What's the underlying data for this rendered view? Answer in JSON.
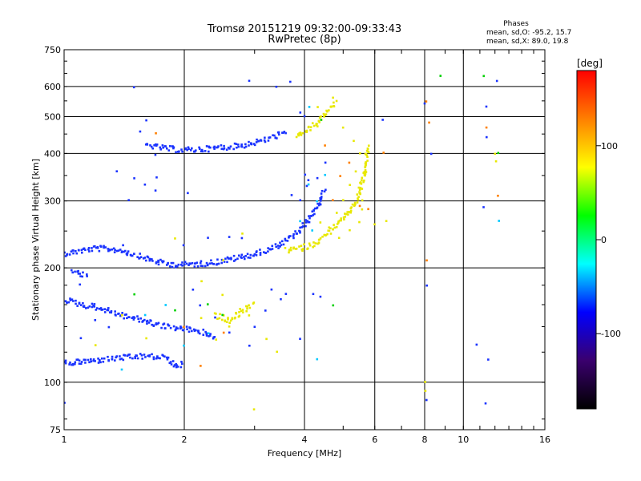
{
  "chart_data": {
    "type": "scatter",
    "title": "Tromsø 20151219 09:32:00-09:33:43",
    "subtitle": "RwPretec (8p)",
    "xlabel": "Frequency [MHz]",
    "ylabel": "Stationary phase Virtual Height [km]",
    "x_scale": "log2",
    "y_scale": "log",
    "xlim": [
      1,
      16
    ],
    "ylim": [
      75,
      750
    ],
    "x_ticks": [
      1,
      2,
      4,
      6,
      8,
      10,
      16
    ],
    "y_ticks": [
      75,
      100,
      200,
      300,
      400,
      500,
      600,
      750
    ],
    "grid": true,
    "info": {
      "heading": "Phases",
      "line_o": "mean, sd,O: -95.2, 15.7",
      "line_x": "mean, sd,X:  89.0, 19.8"
    },
    "colorbar": {
      "label": "[deg]",
      "range": [
        -180,
        180
      ],
      "ticks": [
        "100",
        "0",
        "-100"
      ],
      "tick_values": [
        100,
        0,
        -100
      ],
      "colors": [
        "#000000",
        "#3a006e",
        "#0000ff",
        "#00ffff",
        "#00ff00",
        "#ffff00",
        "#ff7f00",
        "#ff0000"
      ]
    },
    "series": [
      {
        "mode": "O",
        "color": "#1a33ff",
        "phase": -95,
        "traces": [
          [
            [
              1.0,
              218
            ],
            [
              1.1,
              222
            ],
            [
              1.2,
              225
            ],
            [
              1.3,
              224
            ],
            [
              1.4,
              222
            ],
            [
              1.5,
              217
            ],
            [
              1.6,
              212
            ],
            [
              1.7,
              208
            ],
            [
              1.8,
              205
            ],
            [
              1.9,
              204
            ],
            [
              2.0,
              204
            ],
            [
              2.2,
              205
            ],
            [
              2.4,
              207
            ],
            [
              2.7,
              212
            ],
            [
              3.0,
              217
            ],
            [
              3.3,
              224
            ],
            [
              3.6,
              235
            ],
            [
              3.9,
              250
            ],
            [
              4.1,
              268
            ],
            [
              4.3,
              290
            ],
            [
              4.5,
              320
            ]
          ],
          [
            [
              1.6,
              422
            ],
            [
              1.7,
              416
            ],
            [
              1.8,
              412
            ],
            [
              2.0,
              408
            ],
            [
              2.2,
              410
            ],
            [
              2.5,
              415
            ],
            [
              2.8,
              420
            ],
            [
              3.2,
              435
            ],
            [
              3.6,
              455
            ]
          ],
          [
            [
              1.0,
              112
            ],
            [
              1.2,
              114
            ],
            [
              1.4,
              116
            ],
            [
              1.6,
              117
            ],
            [
              1.8,
              116
            ],
            [
              1.9,
              110
            ],
            [
              2.0,
              112
            ]
          ],
          [
            [
              1.05,
              195
            ],
            [
              1.1,
              193
            ],
            [
              1.15,
              190
            ]
          ],
          [
            [
              1.0,
              165
            ],
            [
              1.1,
              160
            ],
            [
              1.2,
              158
            ],
            [
              1.4,
              150
            ],
            [
              1.6,
              145
            ],
            [
              1.8,
              140
            ],
            [
              2.0,
              138
            ],
            [
              2.2,
              136
            ],
            [
              2.4,
              130
            ]
          ]
        ],
        "points": [
          [
            1.5,
            600
          ],
          [
            1.6,
            490
          ],
          [
            1.55,
            455
          ],
          [
            1.7,
            395
          ],
          [
            1.6,
            330
          ],
          [
            1.5,
            345
          ],
          [
            1.7,
            320
          ],
          [
            2.05,
            315
          ],
          [
            1.35,
            360
          ],
          [
            1.45,
            300
          ],
          [
            2.6,
            135
          ],
          [
            2.9,
            125
          ],
          [
            3.3,
            175
          ],
          [
            3.6,
            170
          ],
          [
            3.0,
            140
          ],
          [
            3.2,
            155
          ],
          [
            3.5,
            165
          ],
          [
            3.9,
            130
          ],
          [
            4.2,
            170
          ],
          [
            4.4,
            168
          ],
          [
            3.4,
            600
          ],
          [
            3.7,
            620
          ],
          [
            2.9,
            620
          ],
          [
            3.9,
            510
          ],
          [
            4.0,
            500
          ],
          [
            4.0,
            350
          ],
          [
            4.05,
            330
          ],
          [
            4.1,
            340
          ],
          [
            3.9,
            300
          ],
          [
            3.7,
            310
          ],
          [
            4.3,
            345
          ],
          [
            4.5,
            380
          ],
          [
            6.3,
            490
          ],
          [
            8.1,
            180
          ],
          [
            8.1,
            90
          ],
          [
            8.3,
            400
          ],
          [
            8.0,
            540
          ],
          [
            10.8,
            125
          ],
          [
            11.2,
            290
          ],
          [
            11.4,
            530
          ],
          [
            11.4,
            440
          ],
          [
            11.4,
            88
          ],
          [
            11.5,
            115
          ],
          [
            12.1,
            620
          ],
          [
            1.0,
            88
          ],
          [
            1.1,
            180
          ],
          [
            2.0,
            230
          ],
          [
            2.3,
            240
          ],
          [
            2.6,
            240
          ],
          [
            2.8,
            240
          ],
          [
            1.7,
            345
          ],
          [
            1.4,
            230
          ],
          [
            1.3,
            140
          ],
          [
            1.2,
            145
          ],
          [
            1.1,
            130
          ],
          [
            2.1,
            175
          ],
          [
            2.2,
            160
          ],
          [
            2.4,
            148
          ]
        ]
      },
      {
        "mode": "X",
        "color": "#e8e800",
        "phase": 90,
        "traces": [
          [
            [
              3.6,
              222
            ],
            [
              3.9,
              225
            ],
            [
              4.2,
              230
            ],
            [
              4.5,
              242
            ],
            [
              4.8,
              258
            ],
            [
              5.1,
              276
            ],
            [
              5.4,
              300
            ],
            [
              5.6,
              340
            ],
            [
              5.8,
              420
            ]
          ],
          [
            [
              3.8,
              440
            ],
            [
              4.0,
              455
            ],
            [
              4.2,
              470
            ],
            [
              4.4,
              490
            ],
            [
              4.6,
              520
            ],
            [
              4.8,
              545
            ]
          ],
          [
            [
              2.4,
              150
            ],
            [
              2.6,
              145
            ],
            [
              2.8,
              155
            ],
            [
              3.0,
              160
            ]
          ]
        ],
        "points": [
          [
            4.7,
            560
          ],
          [
            5.0,
            470
          ],
          [
            5.3,
            430
          ],
          [
            5.5,
            400
          ],
          [
            5.7,
            380
          ],
          [
            5.6,
            300
          ],
          [
            5.5,
            265
          ],
          [
            5.2,
            250
          ],
          [
            4.9,
            240
          ],
          [
            4.6,
            255
          ],
          [
            4.4,
            262
          ],
          [
            4.8,
            280
          ],
          [
            5.0,
            300
          ],
          [
            5.2,
            330
          ],
          [
            5.4,
            360
          ],
          [
            5.6,
            285
          ],
          [
            6.0,
            260
          ],
          [
            2.6,
            140
          ],
          [
            2.2,
            148
          ],
          [
            2.4,
            130
          ],
          [
            2.5,
            170
          ],
          [
            2.9,
            150
          ],
          [
            3.2,
            130
          ],
          [
            3.4,
            120
          ],
          [
            2.2,
            185
          ],
          [
            1.6,
            130
          ],
          [
            1.4,
            150
          ],
          [
            1.2,
            125
          ],
          [
            12.0,
            400
          ],
          [
            12.1,
            380
          ],
          [
            8.0,
            100
          ],
          [
            8.0,
            95
          ],
          [
            3.0,
            85
          ],
          [
            6.4,
            265
          ],
          [
            4.3,
            530
          ],
          [
            1.9,
            240
          ],
          [
            2.8,
            245
          ],
          [
            2.5,
            210
          ]
        ]
      },
      {
        "mode": "mixed",
        "color": "#ff7f00",
        "phase": 150,
        "points": [
          [
            5.5,
            290
          ],
          [
            5.8,
            285
          ],
          [
            6.3,
            400
          ],
          [
            8.1,
            210
          ],
          [
            8.1,
            550
          ],
          [
            8.2,
            480
          ],
          [
            11.4,
            470
          ],
          [
            12.2,
            310
          ],
          [
            1.7,
            450
          ],
          [
            2.5,
            135
          ],
          [
            2.2,
            110
          ],
          [
            2.0,
            140
          ],
          [
            4.5,
            420
          ],
          [
            4.9,
            350
          ],
          [
            5.2,
            380
          ],
          [
            4.7,
            300
          ]
        ]
      },
      {
        "mode": "mixed",
        "color": "#00c8ff",
        "phase": 10,
        "points": [
          [
            4.1,
            330
          ],
          [
            4.3,
            300
          ],
          [
            4.5,
            350
          ],
          [
            3.9,
            265
          ],
          [
            4.2,
            250
          ],
          [
            2.3,
            135
          ],
          [
            2.0,
            125
          ],
          [
            1.8,
            160
          ],
          [
            4.1,
            530
          ],
          [
            4.3,
            115
          ],
          [
            12.3,
            265
          ],
          [
            1.4,
            108
          ],
          [
            1.6,
            150
          ]
        ]
      },
      {
        "mode": "mixed",
        "color": "#00d000",
        "phase": 40,
        "points": [
          [
            8.8,
            640
          ],
          [
            11.3,
            640
          ],
          [
            4.4,
            490
          ],
          [
            2.3,
            160
          ],
          [
            1.5,
            170
          ],
          [
            1.9,
            155
          ],
          [
            4.7,
            160
          ],
          [
            2.5,
            150
          ],
          [
            12.2,
            400
          ]
        ]
      }
    ]
  }
}
